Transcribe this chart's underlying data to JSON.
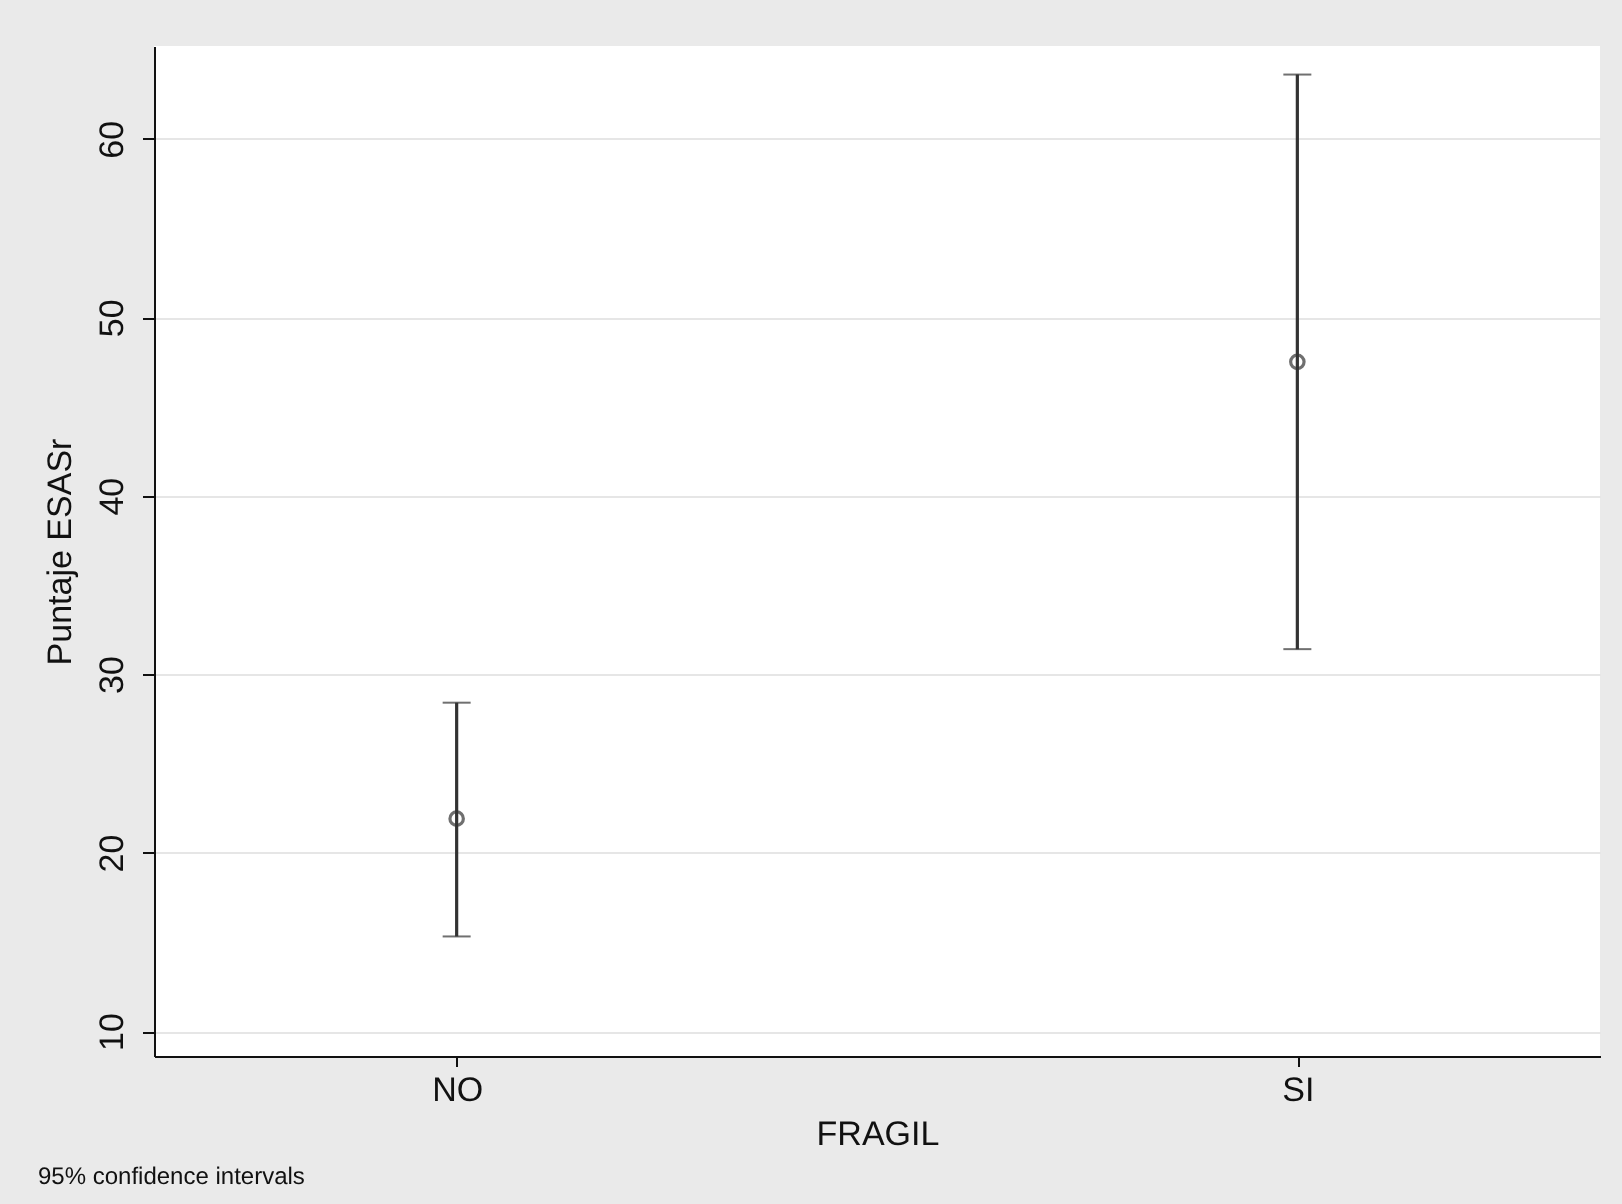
{
  "chart_data": {
    "type": "scatter",
    "xlabel": "FRAGIL",
    "ylabel": "Puntaje ESASr",
    "categories": [
      "NO",
      "SI"
    ],
    "series": [
      {
        "color": "#333333",
        "values": [
          21.9,
          47.5
        ],
        "errors": [
          [
            15.3,
            28.4
          ],
          [
            31.4,
            63.6
          ]
        ]
      }
    ],
    "ylim": [
      8.6,
      65.2
    ],
    "yticks": [
      10,
      20,
      30,
      40,
      50,
      60
    ],
    "grid": "y",
    "marker": "circle",
    "annotations": [
      "95% confidence intervals"
    ]
  }
}
